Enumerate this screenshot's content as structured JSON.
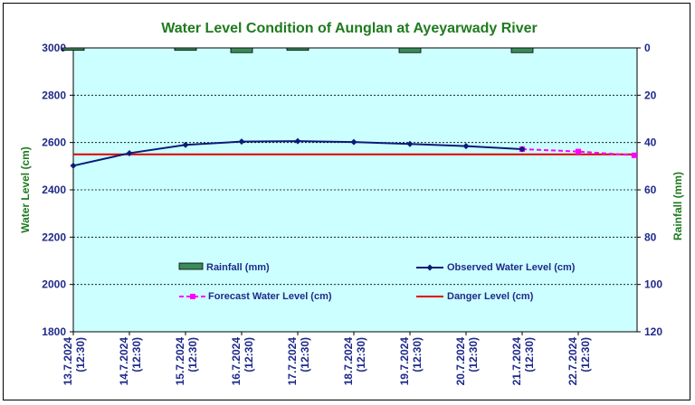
{
  "chart_data": {
    "type": "line",
    "title": "Water Level Condition of Aunglan at Ayeyarwady River",
    "ylabel": "Water Level (cm)",
    "y2label": "Rainfall (mm)",
    "ylim": [
      1800,
      3000
    ],
    "y2lim": [
      0,
      120
    ],
    "y2_inverted": true,
    "yticks": [
      1800,
      2000,
      2200,
      2400,
      2600,
      2800,
      3000
    ],
    "y2ticks": [
      0,
      20,
      40,
      60,
      80,
      100,
      120
    ],
    "grid": true,
    "categories": [
      [
        "13.7.2024",
        "(12:30)"
      ],
      [
        "14.7.2024",
        "(12:30)"
      ],
      [
        "15.7.2024",
        "(12:30)"
      ],
      [
        "16.7.2024",
        "(12:30)"
      ],
      [
        "17.7.2024",
        "(12:30)"
      ],
      [
        "18.7.2024",
        "(12:30)"
      ],
      [
        "19.7.2024",
        "(12:30)"
      ],
      [
        "20.7.2024",
        "(12:30)"
      ],
      [
        "21.7.2024",
        "(12:30)"
      ],
      [
        "22.7.2024",
        "(12:30)"
      ]
    ],
    "rainfall": {
      "name": "Rainfall (mm)",
      "color": "#3a8a5a",
      "values": [
        1,
        0,
        1,
        2,
        1,
        0,
        2,
        0,
        2,
        0
      ]
    },
    "observed": {
      "name": "Observed Water Level (cm)",
      "color": "#0b1b7a",
      "values": [
        2502,
        2555,
        2590,
        2604,
        2606,
        2602,
        2594,
        2585,
        2572
      ]
    },
    "forecast": {
      "name": "Forecast Water Level (cm)",
      "color": "#ff00ff",
      "start_index": 8,
      "values": [
        2572,
        2562,
        2546
      ]
    },
    "danger": {
      "name": "Danger Level (cm)",
      "color": "#e00000",
      "value": 2550
    },
    "plot_background": "#ccffff",
    "legend_placement": "inside-bottom"
  }
}
